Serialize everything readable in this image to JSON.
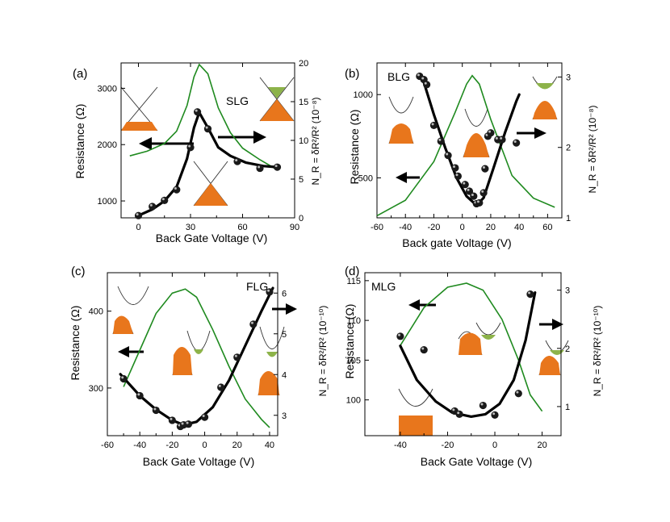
{
  "colors": {
    "fit": "#000000",
    "noise": "#1f8a1f",
    "band_fill": "#e8761c",
    "hole_fill": "#8db34a"
  },
  "chart_data": [
    {
      "type": "scatter",
      "panel": "(a)",
      "material": "SLG",
      "xlabel": "Back Gate Voltage (V)",
      "ylabel": "Resistance (Ω)",
      "y2label": "N_R = δR²/R² (10⁻⁸)",
      "xlim": [
        -10,
        90
      ],
      "ylim": [
        700,
        3450
      ],
      "y2lim": [
        0,
        20
      ],
      "xticks": [
        "0",
        "30",
        "60",
        "90"
      ],
      "yticks": [
        "1000",
        "2000",
        "3000"
      ],
      "y2ticks": [
        "0",
        "5",
        "10",
        "15",
        "20"
      ],
      "xtick_values": [
        0,
        30,
        60,
        90
      ],
      "ytick_values": [
        1000,
        2000,
        3000
      ],
      "y2tick_values": [
        0,
        5,
        10,
        15,
        20
      ],
      "resistance_points": [
        [
          0,
          740
        ],
        [
          8,
          900
        ],
        [
          15,
          1010
        ],
        [
          22,
          1200
        ],
        [
          30,
          1950
        ],
        [
          34,
          2580
        ],
        [
          40,
          2280
        ],
        [
          57,
          1700
        ],
        [
          70,
          1580
        ],
        [
          80,
          1600
        ]
      ],
      "resistance_fit": [
        [
          0,
          740
        ],
        [
          8,
          850
        ],
        [
          15,
          1000
        ],
        [
          22,
          1250
        ],
        [
          28,
          1750
        ],
        [
          32,
          2300
        ],
        [
          35,
          2570
        ],
        [
          40,
          2300
        ],
        [
          46,
          1950
        ],
        [
          53,
          1800
        ],
        [
          62,
          1680
        ],
        [
          72,
          1620
        ],
        [
          80,
          1600
        ]
      ],
      "noise": [
        [
          -5,
          8
        ],
        [
          5,
          8.6
        ],
        [
          15,
          9.6
        ],
        [
          22,
          11.2
        ],
        [
          28,
          14.5
        ],
        [
          32,
          18.2
        ],
        [
          35,
          19.8
        ],
        [
          40,
          18.6
        ],
        [
          46,
          14.2
        ],
        [
          53,
          11
        ],
        [
          60,
          9
        ],
        [
          70,
          7.5
        ],
        [
          80,
          6.2
        ]
      ]
    },
    {
      "type": "scatter",
      "panel": "(b)",
      "material": "BLG",
      "xlabel": "Back gate Voltage (V)",
      "ylabel": "Resistance (Ω)",
      "y2label": "N_R = δR²/R² (10⁻⁸)",
      "xlim": [
        -60,
        70
      ],
      "ylim": [
        260,
        1190
      ],
      "y2lim": [
        1,
        3.2
      ],
      "xticks": [
        "-60",
        "-40",
        "-20",
        "0",
        "20",
        "40",
        "60"
      ],
      "yticks": [
        "500",
        "1000"
      ],
      "y2ticks": [
        "1",
        "2",
        "3"
      ],
      "xtick_values": [
        -60,
        -40,
        -20,
        0,
        20,
        40,
        60
      ],
      "ytick_values": [
        500,
        1000
      ],
      "y2tick_values": [
        1,
        2,
        3
      ],
      "resistance_points": [
        [
          -30,
          1110
        ],
        [
          -27,
          1090
        ],
        [
          -25,
          1060
        ],
        [
          -20,
          815
        ],
        [
          -15,
          720
        ],
        [
          -10,
          635
        ],
        [
          -5,
          560
        ],
        [
          -3,
          510
        ],
        [
          2,
          460
        ],
        [
          5,
          420
        ],
        [
          8,
          390
        ],
        [
          10,
          345
        ],
        [
          12,
          350
        ],
        [
          15,
          410
        ],
        [
          16,
          555
        ],
        [
          18,
          750
        ],
        [
          20,
          770
        ],
        [
          25,
          730
        ],
        [
          28,
          730
        ],
        [
          38,
          710
        ]
      ],
      "resistance_fit": [
        [
          -28,
          1100
        ],
        [
          -20,
          880
        ],
        [
          -12,
          680
        ],
        [
          -4,
          500
        ],
        [
          3,
          390
        ],
        [
          10,
          335
        ],
        [
          15,
          380
        ],
        [
          22,
          560
        ],
        [
          30,
          770
        ],
        [
          38,
          960
        ],
        [
          40,
          1000
        ]
      ],
      "noise": [
        [
          -60,
          1.03
        ],
        [
          -40,
          1.25
        ],
        [
          -20,
          1.8
        ],
        [
          -5,
          2.5
        ],
        [
          3,
          2.9
        ],
        [
          7,
          3.02
        ],
        [
          12,
          2.9
        ],
        [
          20,
          2.4
        ],
        [
          35,
          1.6
        ],
        [
          50,
          1.28
        ],
        [
          65,
          1.15
        ]
      ]
    },
    {
      "type": "scatter",
      "panel": "(c)",
      "material": "FLG",
      "xlabel": "Back Gate Voltage (V)",
      "ylabel": "Resistance (Ω)",
      "y2label": "N_R = δR²/R² (10⁻¹⁰)",
      "xlim": [
        -60,
        45
      ],
      "ylim": [
        238,
        450
      ],
      "y2lim": [
        2.5,
        6.5
      ],
      "xticks": [
        "-60",
        "-40",
        "-20",
        "0",
        "20",
        "40"
      ],
      "yticks": [
        "300",
        "400"
      ],
      "y2ticks": [
        "3",
        "4",
        "5",
        "6"
      ],
      "xtick_values": [
        -60,
        -40,
        -20,
        0,
        20,
        40
      ],
      "ytick_values": [
        300,
        400
      ],
      "y2tick_values": [
        3,
        4,
        5,
        6
      ],
      "resistance_points": [
        [
          -50,
          312
        ],
        [
          -40,
          290
        ],
        [
          -30,
          271
        ],
        [
          -20,
          258
        ],
        [
          -15,
          250
        ],
        [
          -13,
          252
        ],
        [
          -10,
          253
        ],
        [
          0,
          262
        ],
        [
          10,
          301
        ],
        [
          20,
          340
        ],
        [
          30,
          383
        ],
        [
          40,
          425
        ]
      ],
      "resistance_fit": [
        [
          -52,
          318
        ],
        [
          -40,
          290
        ],
        [
          -30,
          272
        ],
        [
          -20,
          258
        ],
        [
          -13,
          252
        ],
        [
          -5,
          256
        ],
        [
          5,
          275
        ],
        [
          15,
          310
        ],
        [
          25,
          355
        ],
        [
          35,
          400
        ],
        [
          42,
          430
        ]
      ],
      "noise": [
        [
          -50,
          3.7
        ],
        [
          -40,
          4.6
        ],
        [
          -30,
          5.5
        ],
        [
          -20,
          6.0
        ],
        [
          -12,
          6.1
        ],
        [
          -5,
          5.9
        ],
        [
          5,
          5.1
        ],
        [
          15,
          4.2
        ],
        [
          25,
          3.4
        ],
        [
          35,
          2.9
        ],
        [
          40,
          2.7
        ]
      ]
    },
    {
      "type": "scatter",
      "panel": "(d)",
      "material": "MLG",
      "xlabel": "Back Gate Voltage (V)",
      "ylabel": "Resistance (Ω)",
      "y2label": "N_R = δR²/R² (10⁻¹⁰)",
      "xlim": [
        -55,
        28
      ],
      "ylim": [
        95.5,
        116
      ],
      "y2lim": [
        0.5,
        3.3
      ],
      "xticks": [
        "-40",
        "-20",
        "0",
        "20"
      ],
      "yticks": [
        "100",
        "105",
        "110",
        "115"
      ],
      "y2ticks": [
        "1",
        "2",
        "3"
      ],
      "xtick_values": [
        -40,
        -20,
        0,
        20
      ],
      "ytick_values": [
        100,
        105,
        110,
        115
      ],
      "y2tick_values": [
        1,
        2,
        3
      ],
      "resistance_points": [
        [
          -40,
          108
        ],
        [
          -30,
          106.3
        ],
        [
          -17,
          98.6
        ],
        [
          -15,
          98.2
        ],
        [
          -5,
          99.3
        ],
        [
          0,
          98.1
        ],
        [
          10,
          100.8
        ],
        [
          15,
          113.3
        ]
      ],
      "resistance_fit": [
        [
          -40,
          106.8
        ],
        [
          -33,
          102.5
        ],
        [
          -25,
          99.8
        ],
        [
          -18,
          98.4
        ],
        [
          -10,
          97.9
        ],
        [
          -4,
          98.2
        ],
        [
          2,
          99.5
        ],
        [
          8,
          102.5
        ],
        [
          13,
          107.5
        ],
        [
          17,
          113.5
        ]
      ],
      "noise": [
        [
          -40,
          2.05
        ],
        [
          -30,
          2.7
        ],
        [
          -20,
          3.05
        ],
        [
          -12,
          3.12
        ],
        [
          -5,
          3.0
        ],
        [
          3,
          2.5
        ],
        [
          10,
          1.8
        ],
        [
          15,
          1.2
        ],
        [
          20,
          0.92
        ]
      ]
    }
  ]
}
